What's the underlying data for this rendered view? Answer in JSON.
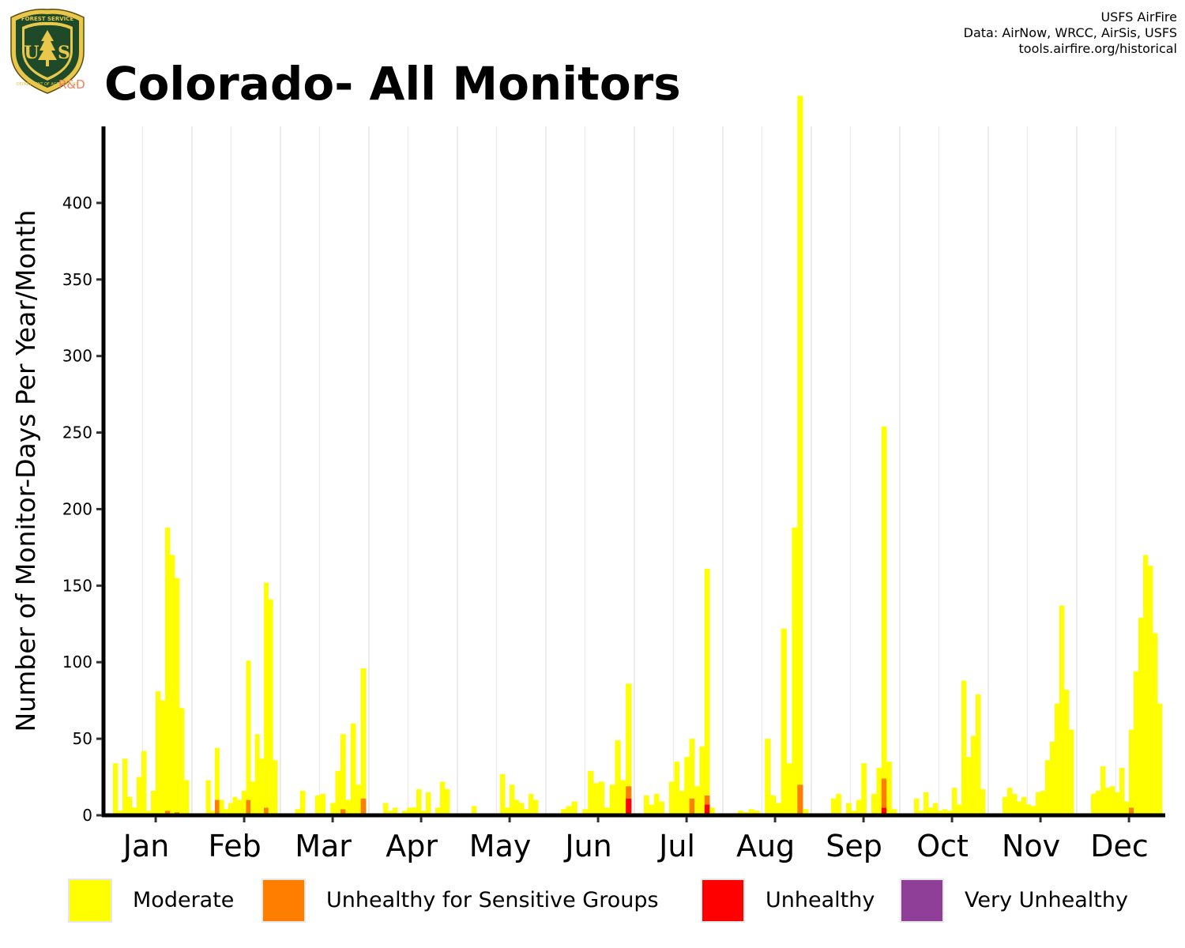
{
  "header": {
    "title": "Colorado- All Monitors",
    "credit_lines": [
      "USFS AirFire",
      "Data: AirNow, WRCC, AirSis, USFS",
      "tools.airfire.org/historical"
    ]
  },
  "logo": {
    "top_text": "FOREST SERVICE",
    "letters": "U S",
    "bottom_text": "DEPARTMENT OF AGRICULTURE",
    "rd_label": "R&D",
    "shield_color": "#1e4a2a",
    "rim_color": "#e8c74a"
  },
  "chart_data": {
    "type": "bar",
    "stacked": true,
    "ylabel": "Number of Monitor-Days Per Year/Month",
    "xlabel": "",
    "ylim": [
      0,
      450
    ],
    "yticks": [
      0,
      50,
      100,
      150,
      200,
      250,
      300,
      350,
      400
    ],
    "categories": [
      "Jan",
      "Feb",
      "Mar",
      "Apr",
      "May",
      "Jun",
      "Jul",
      "Aug",
      "Sep",
      "Oct",
      "Nov",
      "Dec"
    ],
    "grid": "vertical lines between months",
    "legend_position": "bottom",
    "bars_per_month_note": "one bar per year within each month",
    "series": [
      {
        "name": "Moderate",
        "color": "#FFFF00",
        "values": [
          [
            34,
            3,
            37,
            12,
            5,
            25,
            42,
            3,
            16,
            81,
            75,
            185,
            170,
            153,
            70,
            23
          ],
          [
            0,
            23,
            3,
            34,
            10,
            4,
            8,
            12,
            10,
            16,
            91,
            22,
            53,
            37,
            147,
            141,
            36
          ],
          [
            0,
            4,
            16,
            0,
            0,
            13,
            14,
            0,
            8,
            29,
            49,
            10,
            60,
            20,
            85
          ],
          [
            0,
            8,
            3,
            5,
            0,
            3,
            5,
            5,
            17,
            3,
            15,
            0,
            5,
            22,
            17,
            0
          ],
          [
            0,
            6,
            0,
            0,
            0,
            0,
            0,
            27,
            5,
            20,
            10,
            8,
            4,
            14,
            10,
            0
          ],
          [
            0,
            4,
            6,
            9,
            0,
            4,
            29,
            21,
            22,
            5,
            20,
            49,
            23,
            67
          ],
          [
            13,
            7,
            14,
            9,
            0,
            22,
            35,
            16,
            38,
            39,
            19,
            45,
            148,
            5,
            0
          ],
          [
            0,
            3,
            2,
            4,
            3,
            0,
            50,
            13,
            8,
            122,
            34,
            188,
            450,
            4
          ],
          [
            0,
            0,
            11,
            14,
            0,
            8,
            3,
            10,
            34,
            0,
            14,
            31,
            230,
            35,
            4
          ],
          [
            0,
            11,
            3,
            15,
            5,
            8,
            3,
            4,
            3,
            18,
            7,
            88,
            38,
            52,
            79,
            17
          ],
          [
            0,
            12,
            18,
            14,
            9,
            12,
            7,
            6,
            15,
            16,
            36,
            48,
            73,
            137,
            82,
            56
          ],
          [
            0,
            14,
            16,
            32,
            18,
            19,
            15,
            31,
            9,
            51,
            94,
            129,
            170,
            163,
            119,
            73
          ]
        ]
      },
      {
        "name": "Unhealthy for Sensitive Groups",
        "color": "#FF7E00",
        "values": [
          [
            0,
            0,
            0,
            0,
            0,
            0,
            0,
            0,
            0,
            0,
            0,
            3,
            0,
            2,
            0,
            0
          ],
          [
            0,
            0,
            0,
            10,
            0,
            0,
            0,
            0,
            0,
            0,
            10,
            0,
            0,
            0,
            5,
            0,
            0
          ],
          [
            0,
            0,
            0,
            0,
            0,
            0,
            0,
            0,
            0,
            0,
            4,
            0,
            0,
            0,
            11
          ],
          [
            0,
            0,
            0,
            0,
            0,
            0,
            0,
            0,
            0,
            0,
            0,
            0,
            0,
            0,
            0,
            0
          ],
          [
            0,
            0,
            0,
            0,
            0,
            0,
            0,
            0,
            0,
            0,
            0,
            0,
            0,
            0,
            0,
            0
          ],
          [
            0,
            0,
            0,
            0,
            0,
            0,
            0,
            0,
            0,
            0,
            0,
            0,
            0,
            8
          ],
          [
            0,
            0,
            0,
            0,
            0,
            0,
            0,
            0,
            0,
            11,
            0,
            0,
            6,
            0,
            0
          ],
          [
            0,
            0,
            0,
            0,
            0,
            0,
            0,
            0,
            0,
            0,
            0,
            0,
            20,
            0
          ],
          [
            0,
            0,
            0,
            0,
            0,
            0,
            0,
            0,
            0,
            0,
            0,
            0,
            19,
            0,
            0
          ],
          [
            0,
            0,
            0,
            0,
            0,
            0,
            0,
            0,
            0,
            0,
            0,
            0,
            0,
            0,
            0,
            0
          ],
          [
            0,
            0,
            0,
            0,
            0,
            0,
            0,
            0,
            0,
            0,
            0,
            0,
            0,
            0,
            0,
            0
          ],
          [
            0,
            0,
            0,
            0,
            0,
            0,
            0,
            0,
            0,
            5,
            0,
            0,
            0,
            0,
            0,
            0
          ]
        ]
      },
      {
        "name": "Unhealthy",
        "color": "#FF0000",
        "values": [
          [
            0,
            0,
            0,
            0,
            0,
            0,
            0,
            0,
            0,
            0,
            0,
            0,
            0,
            0,
            0,
            0
          ],
          [
            0,
            0,
            0,
            0,
            0,
            0,
            0,
            0,
            0,
            0,
            0,
            0,
            0,
            0,
            0,
            0,
            0
          ],
          [
            0,
            0,
            0,
            0,
            0,
            0,
            0,
            0,
            0,
            0,
            0,
            0,
            0,
            0,
            0
          ],
          [
            0,
            0,
            0,
            0,
            0,
            0,
            0,
            0,
            0,
            0,
            0,
            0,
            0,
            0,
            0,
            0
          ],
          [
            0,
            0,
            0,
            0,
            0,
            0,
            0,
            0,
            0,
            0,
            0,
            0,
            0,
            0,
            0,
            0
          ],
          [
            0,
            0,
            0,
            0,
            0,
            0,
            0,
            0,
            0,
            0,
            0,
            0,
            0,
            11
          ],
          [
            0,
            0,
            0,
            0,
            0,
            0,
            0,
            0,
            0,
            0,
            0,
            0,
            7,
            0,
            0
          ],
          [
            0,
            0,
            0,
            0,
            0,
            0,
            0,
            0,
            0,
            0,
            0,
            0,
            0,
            0
          ],
          [
            0,
            0,
            0,
            0,
            0,
            0,
            0,
            0,
            0,
            0,
            0,
            0,
            5,
            0,
            0
          ],
          [
            0,
            0,
            0,
            0,
            0,
            0,
            0,
            0,
            0,
            0,
            0,
            0,
            0,
            0,
            0,
            0
          ],
          [
            0,
            0,
            0,
            0,
            0,
            0,
            0,
            0,
            0,
            0,
            0,
            0,
            0,
            0,
            0,
            0
          ],
          [
            0,
            0,
            0,
            0,
            0,
            0,
            0,
            0,
            0,
            0,
            0,
            0,
            0,
            0,
            0,
            0
          ]
        ]
      },
      {
        "name": "Very Unhealthy",
        "color": "#8F3F97",
        "values": [
          [
            0,
            0,
            0,
            0,
            0,
            0,
            0,
            0,
            0,
            0,
            0,
            0,
            0,
            0,
            0,
            0
          ],
          [
            0,
            0,
            0,
            0,
            0,
            0,
            0,
            0,
            0,
            0,
            0,
            0,
            0,
            0,
            0,
            0,
            0
          ],
          [
            0,
            0,
            0,
            0,
            0,
            0,
            0,
            0,
            0,
            0,
            0,
            0,
            0,
            0,
            0
          ],
          [
            0,
            0,
            0,
            0,
            0,
            0,
            0,
            0,
            0,
            0,
            0,
            0,
            0,
            0,
            0,
            0
          ],
          [
            0,
            0,
            0,
            0,
            0,
            0,
            0,
            0,
            0,
            0,
            0,
            0,
            0,
            0,
            0,
            0
          ],
          [
            0,
            0,
            0,
            0,
            0,
            0,
            0,
            0,
            0,
            0,
            0,
            0,
            0,
            0
          ],
          [
            0,
            0,
            0,
            0,
            0,
            0,
            0,
            0,
            0,
            0,
            0,
            0,
            0,
            0,
            0
          ],
          [
            0,
            0,
            0,
            0,
            0,
            0,
            0,
            0,
            0,
            0,
            0,
            0,
            0,
            0
          ],
          [
            0,
            0,
            0,
            0,
            0,
            0,
            0,
            0,
            0,
            0,
            0,
            0,
            0,
            0,
            0
          ],
          [
            0,
            0,
            0,
            0,
            0,
            0,
            0,
            0,
            0,
            0,
            0,
            0,
            0,
            0,
            0,
            0
          ],
          [
            0,
            0,
            0,
            0,
            0,
            0,
            0,
            0,
            0,
            0,
            0,
            0,
            0,
            0,
            0,
            0
          ],
          [
            0,
            0,
            0,
            0,
            0,
            0,
            0,
            0,
            0,
            0,
            0,
            0,
            0,
            0,
            0,
            0
          ]
        ]
      }
    ]
  }
}
